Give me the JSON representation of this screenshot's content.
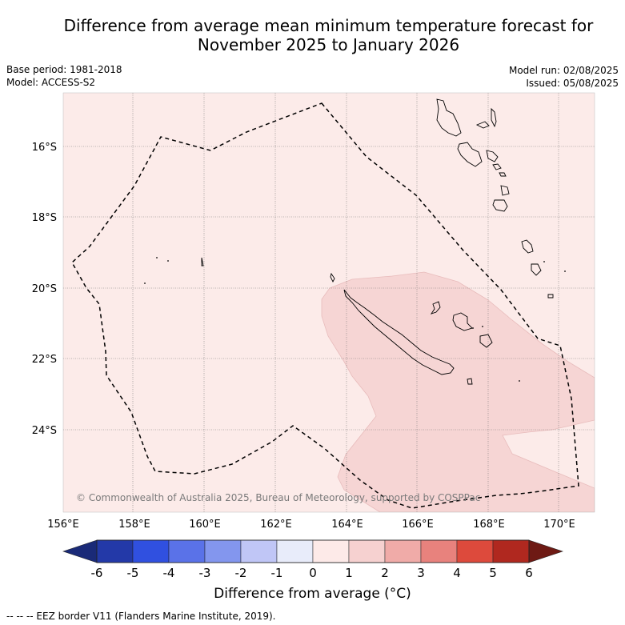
{
  "title_line1": "Difference from average mean minimum temperature forecast for",
  "title_line2": "November 2025 to January 2026",
  "base_period": "Base period: 1981-2018",
  "model": "Model: ACCESS-S2",
  "model_run": "Model run: 02/08/2025",
  "issued": "Issued: 05/08/2025",
  "copyright": "© Commonwealth of Australia 2025, Bureau of Meteorology, supported by COSPPac",
  "lat_labels": [
    "16°S",
    "18°S",
    "20°S",
    "22°S",
    "24°S"
  ],
  "lon_labels": [
    "156°E",
    "158°E",
    "160°E",
    "162°E",
    "164°E",
    "166°E",
    "168°E",
    "170°E"
  ],
  "colorbar": {
    "ticks": [
      "-6",
      "-5",
      "-4",
      "-3",
      "-2",
      "-1",
      "0",
      "1",
      "2",
      "3",
      "4",
      "5",
      "6"
    ],
    "low_color": "#1a2a78",
    "high_color": "#6e1a14",
    "colors": [
      "#2339a8",
      "#3050e0",
      "#5a72e8",
      "#8396ee",
      "#c0c6f6",
      "#e8ecfa",
      "#fdeae8",
      "#f6d1d0",
      "#f0aba8",
      "#e8827d",
      "#dd4a3c",
      "#b0281f"
    ],
    "label": "Difference from average (°C)"
  },
  "footnote": "--  --  -- EEZ border V11 (Flanders Marine Institute, 2019).",
  "colors": {
    "map_background": "#fcebe9",
    "anomaly_fill": "#f6d5d4"
  }
}
